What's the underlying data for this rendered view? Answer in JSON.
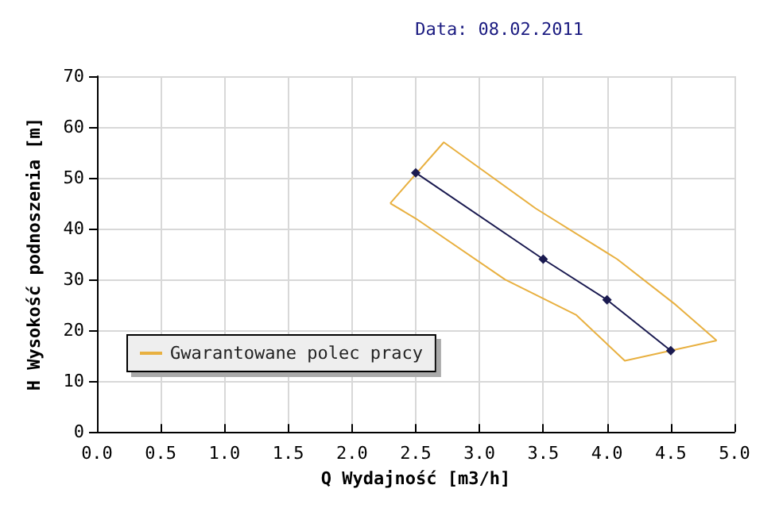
{
  "chart_data": {
    "type": "line",
    "subtitle": "Data: 08.02.2011",
    "xlabel": "Q Wydajność [m3/h]",
    "ylabel": "H Wysokość podnoszenia [m]",
    "xlim": [
      0,
      5
    ],
    "xticks": [
      {
        "value": 0,
        "label": "0.0"
      },
      {
        "value": 0.5,
        "label": "0.5"
      },
      {
        "value": 1,
        "label": "1.0"
      },
      {
        "value": 1.5,
        "label": "1.5"
      },
      {
        "value": 2,
        "label": "2.0"
      },
      {
        "value": 2.5,
        "label": "2.5"
      },
      {
        "value": 3,
        "label": "3.0"
      },
      {
        "value": 3.5,
        "label": "3.5"
      },
      {
        "value": 4,
        "label": "4.0"
      },
      {
        "value": 4.5,
        "label": "4.5"
      },
      {
        "value": 5,
        "label": "5.0"
      }
    ],
    "ylim": [
      0,
      70
    ],
    "yticks": [
      0,
      10,
      20,
      30,
      40,
      50,
      60,
      70
    ],
    "grid": true,
    "legend": "bottom left",
    "line_style": "solid",
    "series": [
      {
        "color": "#1a1a50",
        "marker": "diamond",
        "x": [
          2.5,
          3.5,
          4,
          4.5
        ],
        "values": [
          51,
          34,
          26,
          16
        ]
      },
      {
        "name": "Gwarantowane polec pracy",
        "color": "#e8b040",
        "marker": "none",
        "x": [
          2.3,
          2.72,
          3.44,
          4.08,
          4.54,
          4.86
        ],
        "values": [
          45,
          57,
          44,
          34,
          25,
          18
        ]
      },
      {
        "color": "#e8b040",
        "marker": "none",
        "x": [
          2.3,
          2.5,
          3.2,
          3.76,
          4.14,
          4.86
        ],
        "values": [
          45,
          42,
          30,
          23,
          14,
          18
        ]
      }
    ]
  }
}
